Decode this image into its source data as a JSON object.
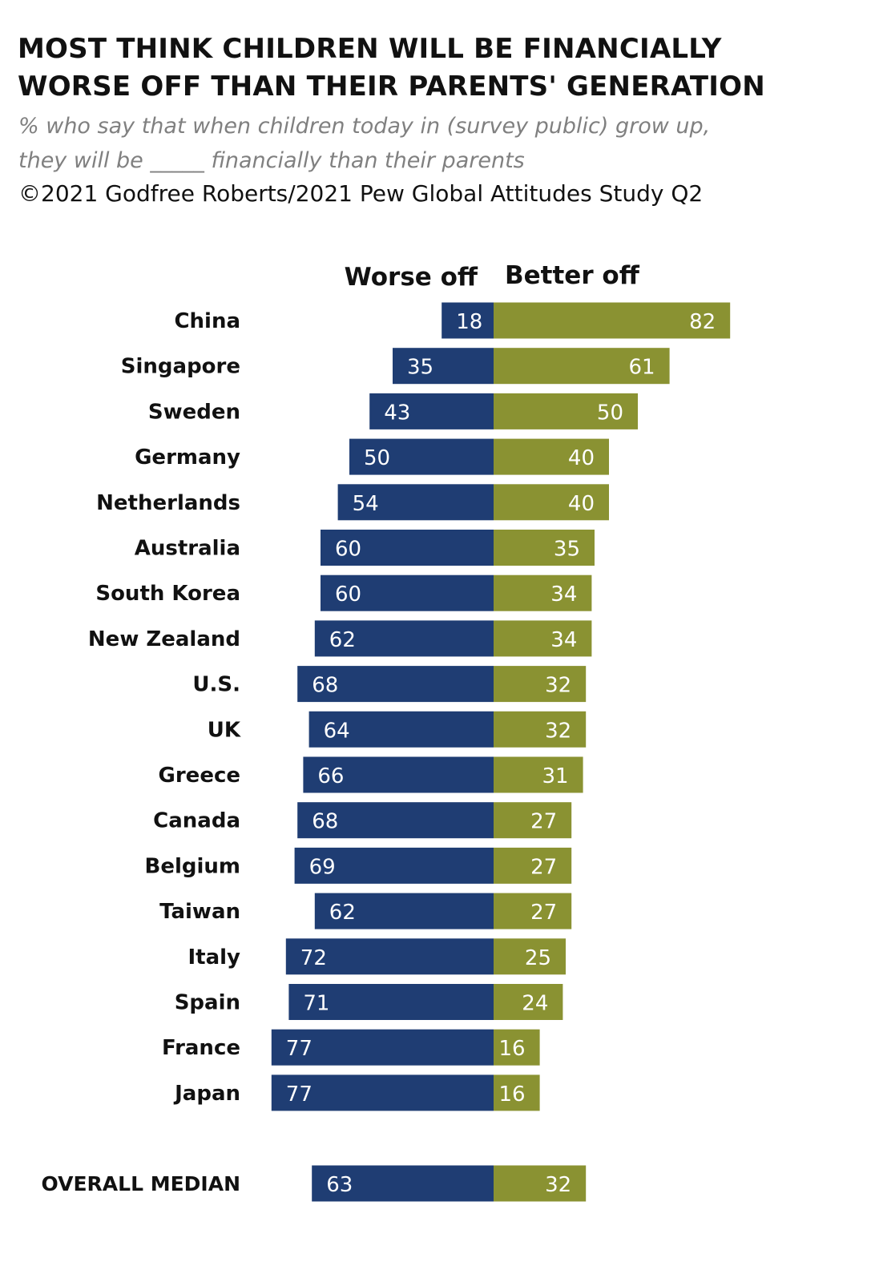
{
  "header": {
    "title_line1": "MOST THINK CHILDREN WILL BE FINANCIALLY",
    "title_line2": "WORSE OFF THAN THEIR PARENTS' GENERATION",
    "subtitle_line1": "% who say that when children today in (survey public) grow up,",
    "subtitle_line2": "they will be _____ financially than their parents",
    "source": "©2021 Godfree Roberts/2021 Pew Global Attitudes Study Q2"
  },
  "colors": {
    "worse": "#1f3d73",
    "better": "#8a9232"
  },
  "chart_data": {
    "type": "bar",
    "orientation": "horizontal-diverging",
    "series": [
      {
        "name": "Worse off",
        "values": [
          18,
          35,
          43,
          50,
          54,
          60,
          60,
          62,
          68,
          64,
          66,
          68,
          69,
          62,
          72,
          71,
          77,
          77
        ]
      },
      {
        "name": "Better off",
        "values": [
          82,
          61,
          50,
          40,
          40,
          35,
          34,
          34,
          32,
          32,
          31,
          27,
          27,
          27,
          25,
          24,
          16,
          16
        ]
      }
    ],
    "categories": [
      "China",
      "Singapore",
      "Sweden",
      "Germany",
      "Netherlands",
      "Australia",
      "South Korea",
      "New Zealand",
      "U.S.",
      "UK",
      "Greece",
      "Canada",
      "Belgium",
      "Taiwan",
      "Italy",
      "Spain",
      "France",
      "Japan"
    ],
    "median": {
      "label": "OVERALL MEDIAN",
      "worse": 63,
      "better": 32
    },
    "grid": false,
    "legend": "top"
  }
}
